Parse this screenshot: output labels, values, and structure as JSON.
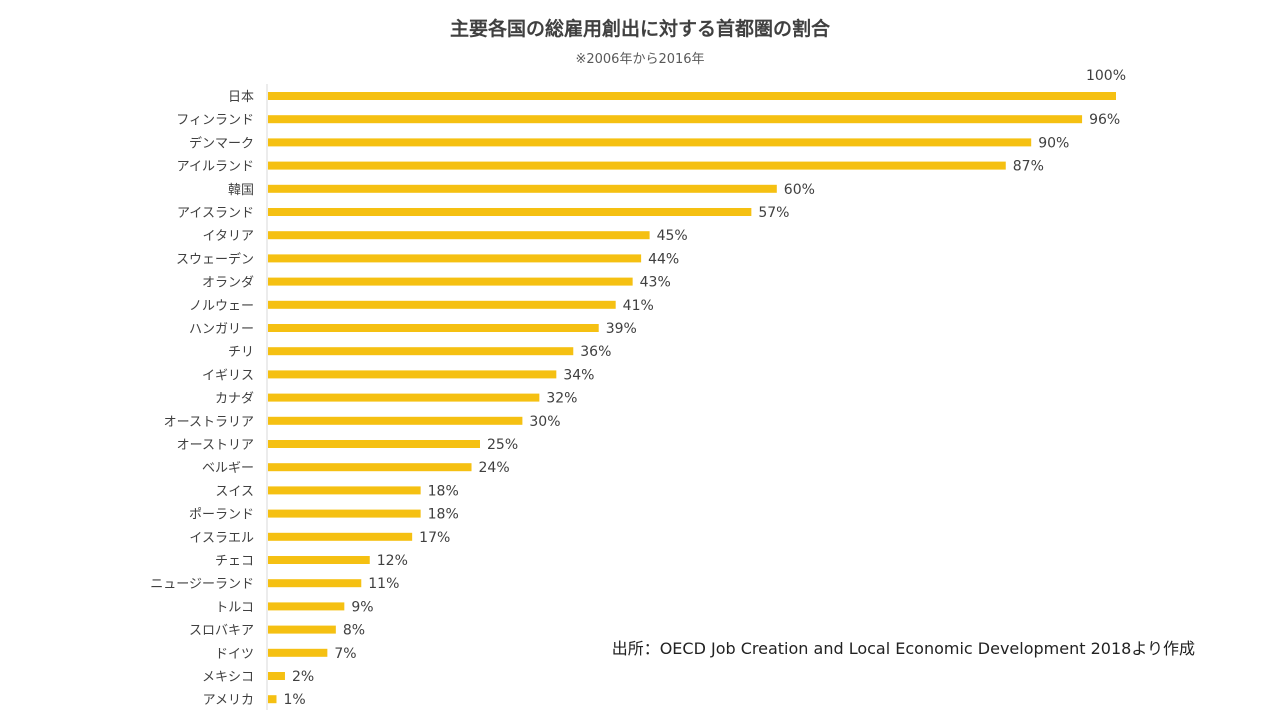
{
  "chart_data": {
    "type": "bar",
    "orientation": "horizontal",
    "title": "主要各国の総雇用創出に対する首都圏の割合",
    "subtitle": "※2006年から2016年",
    "source": "出所：OECD Job Creation and Local Economic Development 2018より作成",
    "bar_color": "#F5C012",
    "xlim": [
      0,
      100
    ],
    "grid": false,
    "categories": [
      "日本",
      "フィンランド",
      "デンマーク",
      "アイルランド",
      "韓国",
      "アイスランド",
      "イタリア",
      "スウェーデン",
      "オランダ",
      "ノルウェー",
      "ハンガリー",
      "チリ",
      "イギリス",
      "カナダ",
      "オーストラリア",
      "オーストリア",
      "ベルギー",
      "スイス",
      "ポーランド",
      "イスラエル",
      "チェコ",
      "ニュージーランド",
      "トルコ",
      "スロバキア",
      "ドイツ",
      "メキシコ",
      "アメリカ"
    ],
    "values": [
      100,
      96,
      90,
      87,
      60,
      57,
      45,
      44,
      43,
      41,
      39,
      36,
      34,
      32,
      30,
      25,
      24,
      18,
      18,
      17,
      12,
      11,
      9,
      8,
      7,
      2,
      1
    ],
    "value_labels": [
      "100%",
      "96%",
      "90%",
      "87%",
      "60%",
      "57%",
      "45%",
      "44%",
      "43%",
      "41%",
      "39%",
      "36%",
      "34%",
      "32%",
      "30%",
      "25%",
      "24%",
      "18%",
      "18%",
      "17%",
      "12%",
      "11%",
      "9%",
      "8%",
      "7%",
      "2%",
      "1%"
    ]
  }
}
